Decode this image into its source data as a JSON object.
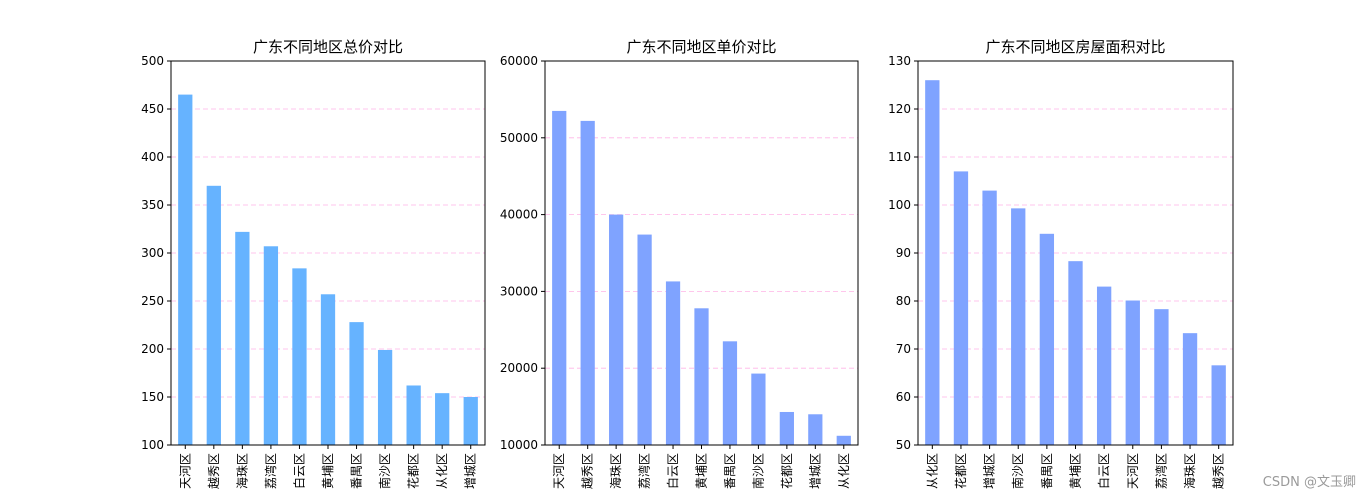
{
  "watermark": "CSDN @文玉卿",
  "style": {
    "total_price_bar_color": "#66b3ff",
    "unit_price_bar_color": "#7fa3ff",
    "area_bar_color": "#7fa3ff",
    "grid_color": "#ffb3e6"
  },
  "chart_data": [
    {
      "type": "bar",
      "title": "广东不同地区总价对比",
      "categories": [
        "天河区",
        "越秀区",
        "海珠区",
        "荔湾区",
        "白云区",
        "黄埔区",
        "番禺区",
        "南沙区",
        "花都区",
        "从化区",
        "增城区"
      ],
      "values": [
        465,
        370,
        322,
        307,
        284,
        257,
        228,
        199,
        162,
        154,
        150
      ],
      "ylim": [
        100,
        500
      ],
      "yticks": [
        100,
        150,
        200,
        250,
        300,
        350,
        400,
        450,
        500
      ],
      "grid": "y-dashed"
    },
    {
      "type": "bar",
      "title": "广东不同地区单价对比",
      "categories": [
        "天河区",
        "越秀区",
        "海珠区",
        "荔湾区",
        "白云区",
        "黄埔区",
        "番禺区",
        "南沙区",
        "花都区",
        "增城区",
        "从化区"
      ],
      "values": [
        53500,
        52200,
        40000,
        37400,
        31300,
        27800,
        23500,
        19300,
        14300,
        14000,
        11200
      ],
      "ylim": [
        10000,
        60000
      ],
      "yticks": [
        10000,
        20000,
        30000,
        40000,
        50000,
        60000
      ],
      "grid": "y-dashed"
    },
    {
      "type": "bar",
      "title": "广东不同地区房屋面积对比",
      "categories": [
        "从化区",
        "花都区",
        "增城区",
        "南沙区",
        "番禺区",
        "黄埔区",
        "白云区",
        "天河区",
        "荔湾区",
        "海珠区",
        "越秀区"
      ],
      "values": [
        126,
        107,
        103,
        99.3,
        94,
        88.3,
        83,
        80.1,
        78.3,
        73.3,
        66.6
      ],
      "ylim": [
        50,
        130
      ],
      "yticks": [
        50,
        60,
        70,
        80,
        90,
        100,
        110,
        120,
        130
      ],
      "grid": "y-dashed"
    }
  ]
}
